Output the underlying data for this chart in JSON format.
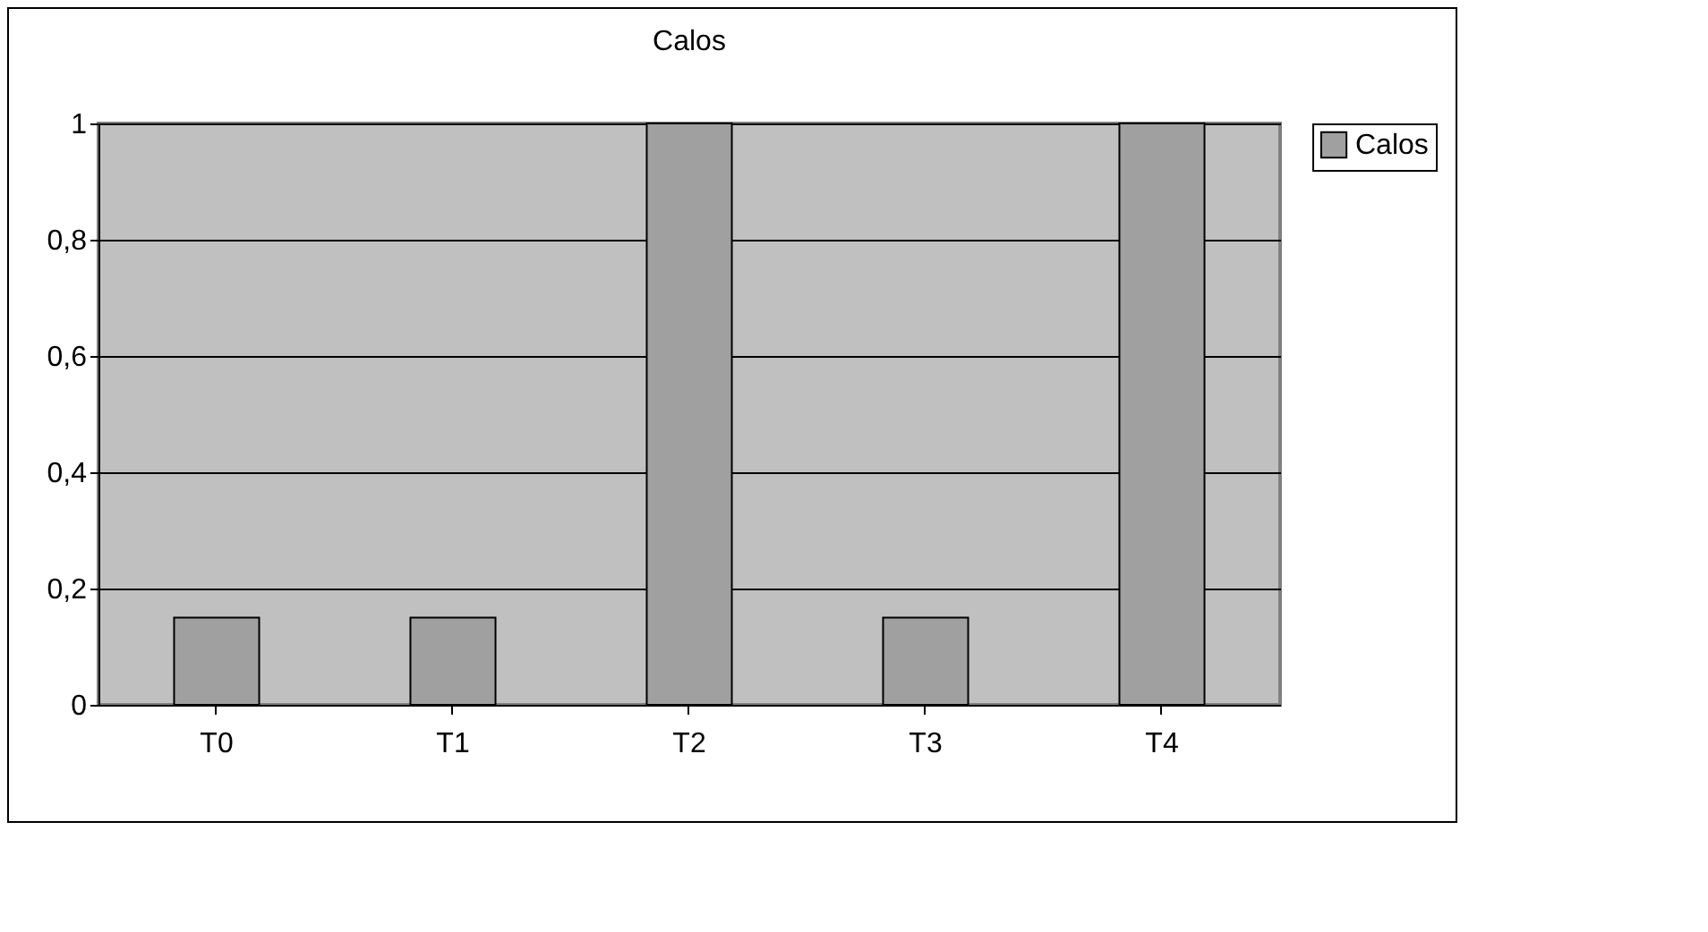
{
  "chart_data": {
    "type": "bar",
    "title": "Calos",
    "categories": [
      "T0",
      "T1",
      "T2",
      "T3",
      "T4"
    ],
    "series": [
      {
        "name": "Calos",
        "color": "#a0a0a0",
        "values": [
          0.15,
          0.15,
          1,
          0.15,
          1
        ]
      }
    ],
    "ylim": [
      0,
      1
    ],
    "yticks": [
      {
        "value": 0,
        "label": "0"
      },
      {
        "value": 0.2,
        "label": "0,2"
      },
      {
        "value": 0.4,
        "label": "0,4"
      },
      {
        "value": 0.6,
        "label": "0,6"
      },
      {
        "value": 0.8,
        "label": "0,8"
      },
      {
        "value": 1,
        "label": "1"
      }
    ],
    "grid": "y",
    "legend": "right"
  }
}
